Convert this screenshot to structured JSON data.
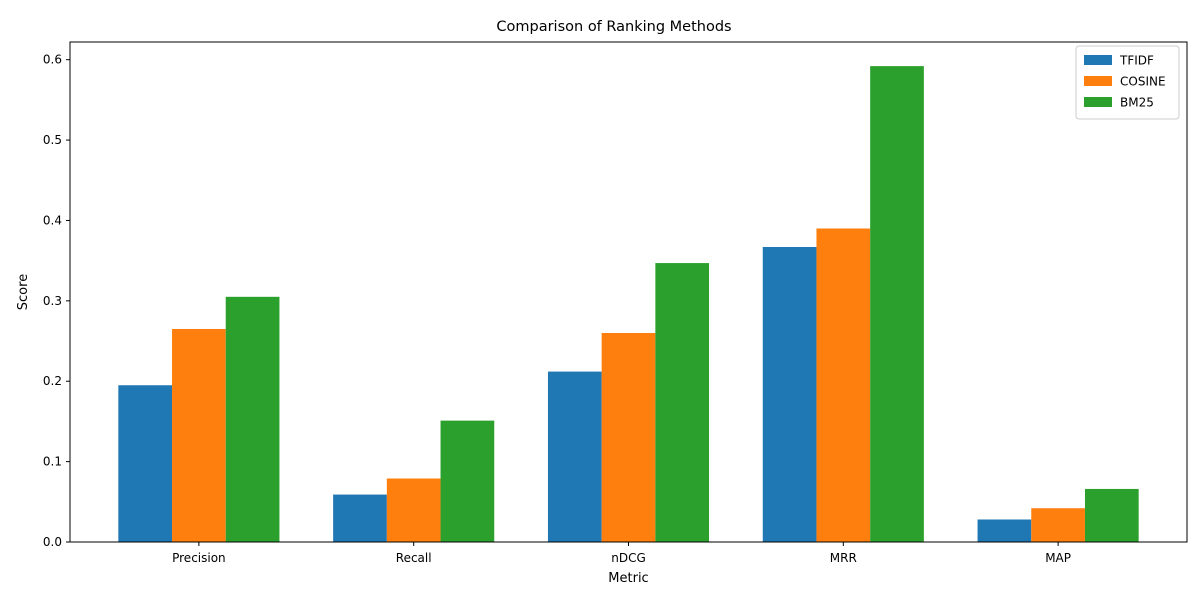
{
  "chart_data": {
    "type": "bar",
    "title": "Comparison of Ranking Methods",
    "xlabel": "Metric",
    "ylabel": "Score",
    "categories": [
      "Precision",
      "Recall",
      "nDCG",
      "MRR",
      "MAP"
    ],
    "series": [
      {
        "name": "TFIDF",
        "color": "#1f77b4",
        "values": [
          0.195,
          0.059,
          0.212,
          0.367,
          0.028
        ]
      },
      {
        "name": "COSINE",
        "color": "#ff7f0e",
        "values": [
          0.265,
          0.079,
          0.26,
          0.39,
          0.042
        ]
      },
      {
        "name": "BM25",
        "color": "#2ca02c",
        "values": [
          0.305,
          0.151,
          0.347,
          0.592,
          0.066
        ]
      }
    ],
    "ylim": [
      0,
      0.622
    ],
    "yticks": [
      "0.0",
      "0.1",
      "0.2",
      "0.3",
      "0.4",
      "0.5",
      "0.6"
    ],
    "grid": false,
    "legend_position": "top-right"
  }
}
